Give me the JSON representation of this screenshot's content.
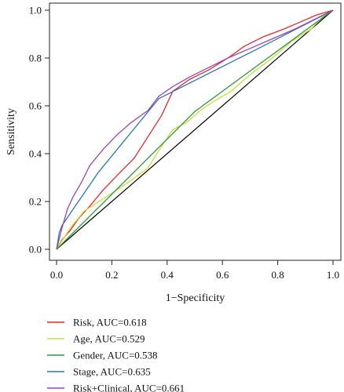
{
  "chart_data": {
    "type": "line",
    "title": "",
    "xlabel": "1−Specificity",
    "ylabel": "Sensitivity",
    "xlim": [
      0.0,
      1.0
    ],
    "ylim": [
      0.0,
      1.0
    ],
    "x_ticks": [
      "0.0",
      "0.2",
      "0.4",
      "0.6",
      "0.8",
      "1.0"
    ],
    "y_ticks": [
      "0.0",
      "0.2",
      "0.4",
      "0.6",
      "0.8",
      "1.0"
    ],
    "grid": false,
    "legend_position": "bottom-left",
    "diagonal_reference": true,
    "series": [
      {
        "name": "Risk, AUC=0.618",
        "color": "#e8272b",
        "x": [
          0.0,
          0.02,
          0.05,
          0.08,
          0.12,
          0.17,
          0.22,
          0.28,
          0.33,
          0.38,
          0.42,
          0.48,
          0.55,
          0.62,
          0.68,
          0.75,
          0.82,
          0.88,
          0.94,
          1.0
        ],
        "y": [
          0.0,
          0.04,
          0.08,
          0.13,
          0.18,
          0.25,
          0.31,
          0.38,
          0.47,
          0.56,
          0.66,
          0.71,
          0.75,
          0.8,
          0.85,
          0.89,
          0.92,
          0.95,
          0.98,
          1.0
        ]
      },
      {
        "name": "Age, AUC=0.529",
        "color": "#c8de3c",
        "x": [
          0.0,
          0.05,
          0.1,
          0.18,
          0.26,
          0.33,
          0.38,
          0.42,
          0.47,
          0.52,
          0.57,
          0.63,
          0.7,
          0.78,
          0.85,
          0.92,
          0.96,
          1.0
        ],
        "y": [
          0.0,
          0.09,
          0.16,
          0.22,
          0.28,
          0.34,
          0.43,
          0.5,
          0.53,
          0.58,
          0.62,
          0.66,
          0.73,
          0.8,
          0.87,
          0.92,
          0.97,
          1.0
        ]
      },
      {
        "name": "Gender, AUC=0.538",
        "color": "#2e9c3a",
        "x": [
          0.0,
          0.5,
          1.0
        ],
        "y": [
          0.0,
          0.576,
          1.0
        ]
      },
      {
        "name": "Stage, AUC=0.635",
        "color": "#2878b5",
        "x": [
          0.0,
          0.01,
          0.02,
          0.15,
          0.37,
          0.73,
          1.0
        ],
        "y": [
          0.0,
          0.07,
          0.1,
          0.32,
          0.63,
          0.84,
          1.0
        ]
      },
      {
        "name": "Risk+Clinical, AUC=0.661",
        "color": "#9b43b8",
        "x": [
          0.0,
          0.02,
          0.04,
          0.06,
          0.09,
          0.12,
          0.17,
          0.22,
          0.27,
          0.33,
          0.37,
          0.42,
          0.48,
          0.55,
          0.62,
          0.7,
          0.78,
          0.86,
          0.93,
          1.0
        ],
        "y": [
          0.0,
          0.09,
          0.17,
          0.22,
          0.28,
          0.35,
          0.42,
          0.48,
          0.53,
          0.58,
          0.64,
          0.68,
          0.72,
          0.76,
          0.8,
          0.84,
          0.88,
          0.92,
          0.96,
          1.0
        ]
      }
    ]
  },
  "colors": {
    "axis": "#222222",
    "diagonal": "#000000"
  }
}
